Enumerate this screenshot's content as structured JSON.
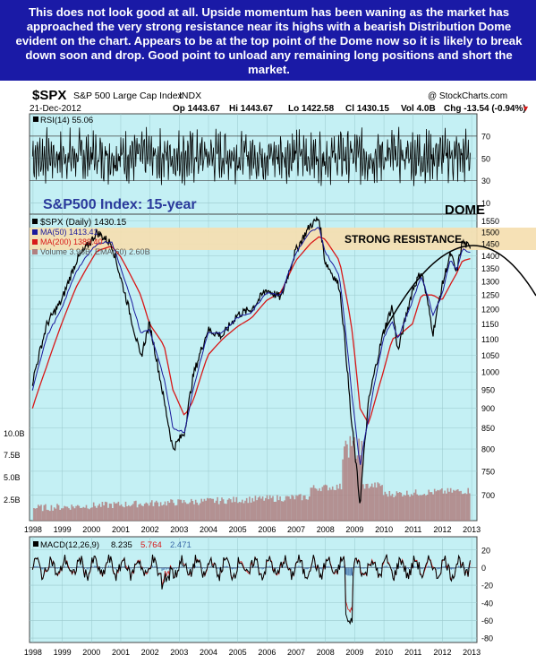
{
  "commentary": "This does not look good at all.  Upside momentum has been waning as the market has approached the very strong resistance near its highs with a bearish Distribution Dome evident on the chart. Appears to be at the top point of the Dome now so it is likely to break down soon and drop. Good point to unload any remaining long positions and short the market.",
  "header": {
    "symbol": "$SPX",
    "name": "S&P 500 Large Cap Index",
    "exchange": "INDX",
    "date": "21-Dec-2012",
    "open": "Op 1443.67",
    "high": "Hi 1443.67",
    "low": "Lo 1422.58",
    "close": "Cl 1430.15",
    "volume": "Vol 4.0B",
    "change": "Chg -13.54 (-0.94%)",
    "change_arrow": "▼",
    "copyright": "@ StockCharts.com"
  },
  "colors": {
    "panel_bg": "#c4f0f4",
    "price": "#000000",
    "ma50": "#1a1a9c",
    "ma200": "#d81818",
    "volume": "#b08080",
    "macd": "#000000",
    "macd_signal": "#d81818",
    "macd_hist": "#3a6aa8",
    "resistance_band": "#f5deb0",
    "banner": "#1a1aa6"
  },
  "rsi": {
    "label": "RSI(14) 55.06",
    "levels": [
      "70",
      "50",
      "30",
      "10"
    ]
  },
  "price_panel": {
    "title": "S&P500 Index: 15-year",
    "dome_label": "DOME",
    "resistance_label": "STRONG RESISTANCE",
    "legend": {
      "price": "$SPX (Daily) 1430.15",
      "ma50": "MA(50) 1413.41",
      "ma200": "MA(200) 1389.40",
      "volume": "Volume 3.96B, EMA(60) 2.60B"
    },
    "price_ticks": [
      "1550",
      "1500",
      "1450",
      "1400",
      "1350",
      "1300",
      "1250",
      "1200",
      "1150",
      "1100",
      "1050",
      "1000",
      "950",
      "900",
      "850",
      "800",
      "750",
      "700"
    ],
    "volume_ticks": [
      "10.0B",
      "7.5B",
      "5.0B",
      "2.5B"
    ]
  },
  "macd": {
    "label": "MACD(12,26,9)",
    "value": "8.235",
    "signal": "5.764",
    "hist": "2.471",
    "ticks": [
      "20",
      "0",
      "-20",
      "-40",
      "-60",
      "-80"
    ]
  },
  "x_axis": {
    "years": [
      "1998",
      "1999",
      "2000",
      "2001",
      "2002",
      "2003",
      "2004",
      "2005",
      "2006",
      "2007",
      "2008",
      "2009",
      "2010",
      "2011",
      "2012",
      "2013"
    ]
  },
  "chart_data": [
    {
      "type": "line",
      "title": "$SPX (Daily) 1430.15",
      "x": [
        1998.0,
        1998.5,
        1999.0,
        1999.5,
        2000.0,
        2000.2,
        2000.7,
        2001.0,
        2001.7,
        2002.0,
        2002.5,
        2002.8,
        2003.2,
        2003.5,
        2004.0,
        2004.5,
        2005.0,
        2005.5,
        2006.0,
        2006.5,
        2007.0,
        2007.5,
        2007.8,
        2008.0,
        2008.5,
        2008.9,
        2009.2,
        2009.5,
        2010.0,
        2010.3,
        2010.5,
        2011.0,
        2011.3,
        2011.7,
        2012.0,
        2012.3,
        2012.5,
        2012.7,
        2012.97
      ],
      "series": [
        {
          "name": "$SPX",
          "values": [
            970,
            1150,
            1230,
            1380,
            1460,
            1500,
            1450,
            1320,
            1040,
            1150,
            920,
            800,
            840,
            990,
            1130,
            1110,
            1180,
            1200,
            1270,
            1240,
            1420,
            1530,
            1560,
            1380,
            1280,
            870,
            680,
            920,
            1120,
            1210,
            1060,
            1270,
            1340,
            1120,
            1280,
            1410,
            1330,
            1460,
            1430
          ]
        },
        {
          "name": "MA(50)",
          "values": [
            950,
            1110,
            1200,
            1340,
            1420,
            1450,
            1460,
            1360,
            1120,
            1130,
            980,
            850,
            840,
            950,
            1120,
            1120,
            1170,
            1190,
            1260,
            1250,
            1410,
            1500,
            1520,
            1420,
            1320,
            950,
            760,
            880,
            1100,
            1160,
            1100,
            1230,
            1320,
            1180,
            1250,
            1390,
            1340,
            1430,
            1413
          ]
        },
        {
          "name": "MA(200)",
          "values": [
            900,
            1020,
            1150,
            1280,
            1380,
            1420,
            1440,
            1400,
            1250,
            1150,
            1080,
            950,
            880,
            920,
            1050,
            1100,
            1140,
            1170,
            1230,
            1260,
            1380,
            1450,
            1480,
            1470,
            1380,
            1150,
            900,
            860,
            1000,
            1100,
            1110,
            1150,
            1250,
            1250,
            1230,
            1290,
            1330,
            1380,
            1389
          ]
        }
      ],
      "ylim": [
        650,
        1580
      ],
      "xlim": [
        1997.9,
        2013.2
      ]
    },
    {
      "type": "line",
      "title": "RSI(14) 55.06",
      "x": [
        2012.97
      ],
      "series": [
        {
          "name": "RSI(14)",
          "values": [
            55.06
          ]
        }
      ],
      "ylim": [
        0,
        90
      ]
    },
    {
      "type": "line",
      "title": "MACD(12,26,9)",
      "x": [
        2012.97
      ],
      "series": [
        {
          "name": "MACD",
          "values": [
            8.235
          ]
        },
        {
          "name": "Signal",
          "values": [
            5.764
          ]
        },
        {
          "name": "Histogram",
          "values": [
            2.471
          ]
        }
      ],
      "ylim": [
        -85,
        35
      ]
    }
  ]
}
